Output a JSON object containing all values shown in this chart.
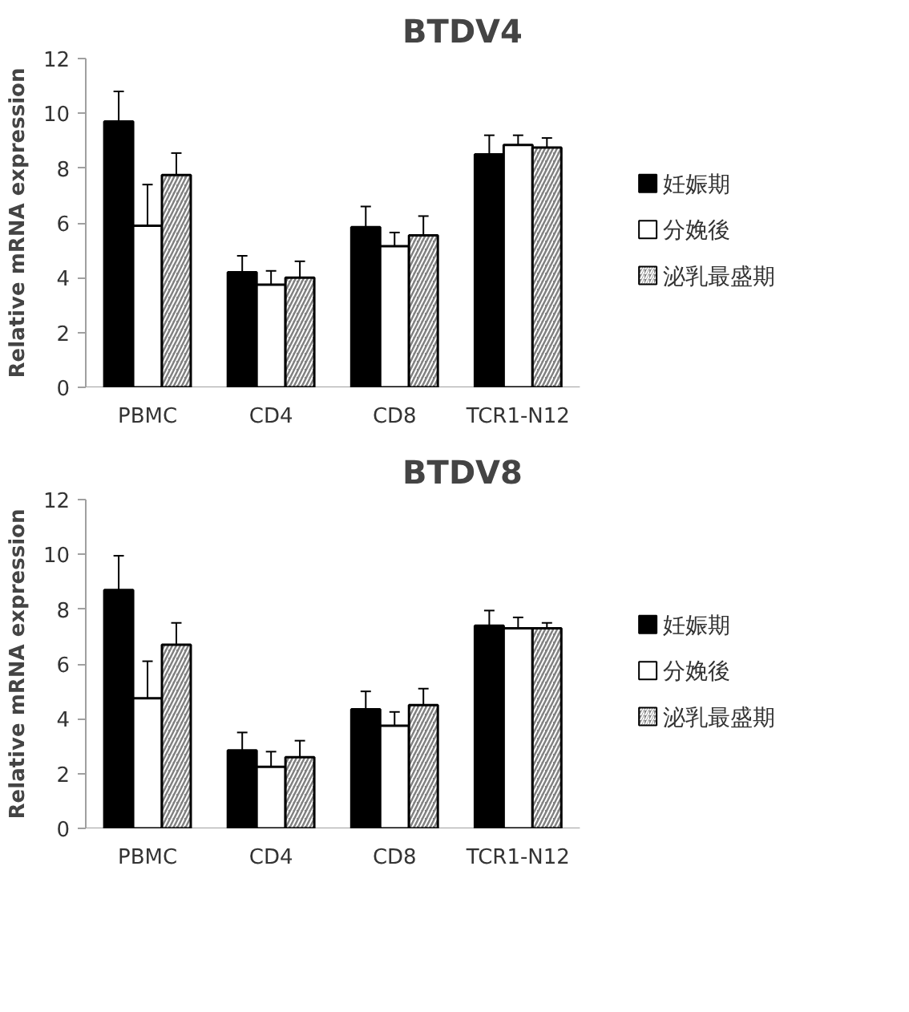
{
  "chart_data": [
    {
      "type": "bar",
      "title": "BTDV4",
      "ylabel": "Relative mRNA expression",
      "categories": [
        "PBMC",
        "CD4",
        "CD8",
        "TCR1-N12"
      ],
      "ylim": [
        0,
        12
      ],
      "yticks": [
        0,
        2,
        4,
        6,
        8,
        10,
        12
      ],
      "grid": false,
      "legend": "right",
      "series": [
        {
          "name": "妊娠期",
          "color": "#000000",
          "values": [
            9.7,
            4.2,
            5.85,
            8.5
          ],
          "errors": [
            [
              9.7,
              10.8
            ],
            [
              4.2,
              4.8
            ],
            [
              5.85,
              6.6
            ],
            [
              8.5,
              9.2
            ]
          ]
        },
        {
          "name": "分娩後",
          "color": "#ffffff",
          "values": [
            5.9,
            3.75,
            5.15,
            8.85
          ],
          "errors": [
            [
              5.9,
              7.4
            ],
            [
              3.75,
              4.25
            ],
            [
              5.15,
              5.65
            ],
            [
              8.85,
              9.2
            ]
          ]
        },
        {
          "name": "泌乳最盛期",
          "color": "#808080",
          "values": [
            7.75,
            4.0,
            5.55,
            8.75
          ],
          "errors": [
            [
              7.75,
              8.55
            ],
            [
              4.0,
              4.6
            ],
            [
              5.55,
              6.25
            ],
            [
              8.75,
              9.1
            ]
          ]
        }
      ]
    },
    {
      "type": "bar",
      "title": "BTDV8",
      "ylabel": "Relative mRNA expression",
      "categories": [
        "PBMC",
        "CD4",
        "CD8",
        "TCR1-N12"
      ],
      "ylim": [
        0,
        12
      ],
      "yticks": [
        0,
        2,
        4,
        6,
        8,
        10,
        12
      ],
      "grid": false,
      "legend": "right",
      "series": [
        {
          "name": "妊娠期",
          "color": "#000000",
          "values": [
            8.7,
            2.85,
            4.35,
            7.4
          ],
          "errors": [
            [
              8.7,
              9.95
            ],
            [
              2.85,
              3.5
            ],
            [
              4.35,
              5.0
            ],
            [
              7.4,
              7.95
            ]
          ]
        },
        {
          "name": "分娩後",
          "color": "#ffffff",
          "values": [
            4.75,
            2.25,
            3.75,
            7.3
          ],
          "errors": [
            [
              4.75,
              6.1
            ],
            [
              2.25,
              2.8
            ],
            [
              3.75,
              4.25
            ],
            [
              7.3,
              7.7
            ]
          ]
        },
        {
          "name": "泌乳最盛期",
          "color": "#808080",
          "values": [
            6.7,
            2.6,
            4.5,
            7.3
          ],
          "errors": [
            [
              6.7,
              7.5
            ],
            [
              2.6,
              3.2
            ],
            [
              4.5,
              5.1
            ],
            [
              7.3,
              7.5
            ]
          ]
        }
      ]
    }
  ]
}
